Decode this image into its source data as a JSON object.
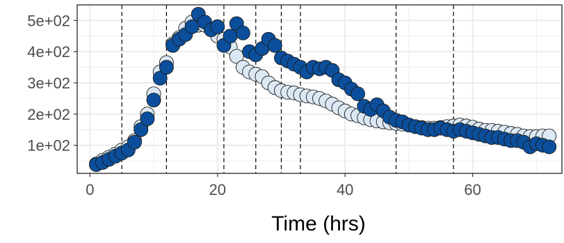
{
  "chart_data": {
    "type": "scatter",
    "title": "",
    "xlabel": "Time (hrs)",
    "ylabel": "",
    "xlim": [
      -2,
      74
    ],
    "ylim": [
      10,
      550
    ],
    "grid": true,
    "x_ticks": [
      0,
      20,
      40,
      60
    ],
    "x_tick_labels": [
      "0",
      "20",
      "40",
      "60"
    ],
    "y_ticks": [
      100,
      200,
      300,
      400,
      500
    ],
    "y_tick_labels": [
      "1e+02",
      "2e+02",
      "3e+02",
      "4e+02",
      "5e+02"
    ],
    "vlines": [
      5,
      12,
      21,
      26,
      30,
      33,
      48,
      57
    ],
    "colors": {
      "dark_series": "#0b4f9c",
      "light_series": "#dce9f5",
      "point_stroke": "#1a1a1a",
      "grid": "#ebebeb",
      "panel_border": "#333333"
    },
    "series": [
      {
        "style": "light",
        "x": [
          1,
          2,
          3,
          4,
          5,
          6,
          7,
          8,
          9,
          10,
          11,
          12,
          13,
          14,
          15,
          16,
          17,
          18,
          19,
          20,
          21,
          22,
          23,
          24,
          25,
          26,
          27,
          28,
          29,
          30,
          31,
          32,
          33,
          34,
          35,
          36,
          37,
          38,
          39,
          40,
          41,
          42,
          43,
          44,
          45,
          46,
          47,
          48,
          49,
          50,
          51,
          52,
          53,
          54,
          55,
          56,
          57,
          58,
          59,
          60,
          61,
          62,
          63,
          64,
          65,
          66,
          67,
          68,
          69,
          70,
          71,
          72
        ],
        "y": [
          40,
          52,
          62,
          72,
          85,
          95,
          115,
          160,
          200,
          265,
          335,
          365,
          425,
          445,
          475,
          495,
          485,
          485,
          470,
          450,
          440,
          415,
          385,
          350,
          335,
          328,
          320,
          300,
          285,
          275,
          270,
          268,
          262,
          258,
          255,
          250,
          242,
          232,
          220,
          210,
          200,
          195,
          188,
          182,
          178,
          175,
          172,
          170,
          168,
          165,
          160,
          157,
          155,
          155,
          157,
          160,
          162,
          165,
          162,
          158,
          152,
          148,
          148,
          145,
          142,
          138,
          135,
          130,
          128,
          128,
          130,
          130
        ]
      },
      {
        "style": "dark",
        "x": [
          1,
          2,
          3,
          4,
          5,
          6,
          7,
          8,
          9,
          10,
          11,
          12,
          13,
          14,
          15,
          16,
          17,
          18,
          19,
          20,
          21,
          22,
          23,
          24,
          25,
          26,
          27,
          28,
          29,
          30,
          31,
          32,
          33,
          34,
          35,
          36,
          37,
          38,
          39,
          40,
          41,
          42,
          43,
          44,
          45,
          46,
          47,
          48,
          49,
          50,
          51,
          52,
          53,
          54,
          55,
          56,
          57,
          58,
          59,
          60,
          61,
          62,
          63,
          64,
          65,
          66,
          67,
          68,
          69,
          70,
          71,
          72
        ],
        "y": [
          38,
          45,
          55,
          65,
          75,
          85,
          110,
          150,
          185,
          245,
          315,
          350,
          420,
          440,
          455,
          480,
          520,
          495,
          470,
          480,
          420,
          450,
          490,
          460,
          400,
          390,
          410,
          440,
          420,
          380,
          370,
          360,
          350,
          335,
          350,
          345,
          350,
          340,
          310,
          300,
          280,
          265,
          225,
          215,
          230,
          210,
          190,
          180,
          175,
          165,
          160,
          155,
          150,
          150,
          155,
          150,
          145,
          150,
          145,
          140,
          135,
          130,
          125,
          125,
          120,
          115,
          115,
          110,
          95,
          105,
          100,
          95
        ]
      }
    ]
  }
}
